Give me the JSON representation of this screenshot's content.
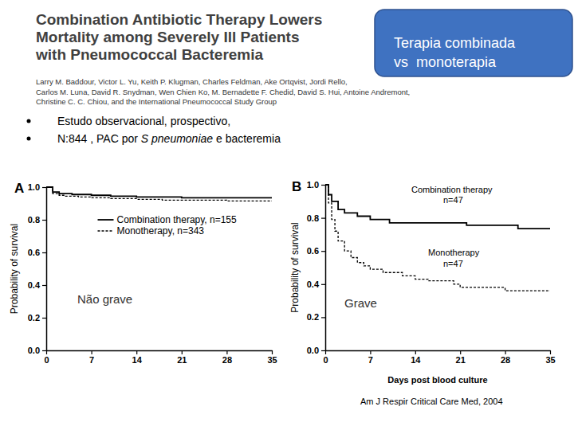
{
  "slide": {
    "title_lines": [
      "Combination Antibiotic Therapy Lowers",
      "Mortality among Severely Ill Patients",
      "with Pneumococcal Bacteremia"
    ],
    "author_lines": [
      "Larry M. Baddour, Victor L. Yu, Keith P. Klugman, Charles Feldman, Ake Ortqvist, Jordi Rello,",
      "Carlos M. Luna, David R. Snydman, Wen Chien Ko, M. Bernadette F. Chedid, David S. Hui, Antoine Andremont,",
      "Christine C. C. Chiou, and the International Pneumococcal Study Group"
    ],
    "box_lines": [
      "Terapia combinada",
      "vs  monoterapia"
    ],
    "bullets": [
      [
        {
          "text": "Estudo observacional, prospectivo,",
          "italic": false
        }
      ],
      [
        {
          "text": "N:844 , PAC por ",
          "italic": false
        },
        {
          "text": "S pneumoniae",
          "italic": true
        },
        {
          "text": " e bacteremia",
          "italic": false
        }
      ]
    ],
    "source": "Am J Respir Critical Care Med, 2004"
  },
  "chart_data": [
    {
      "type": "line",
      "panel": "A",
      "ylabel": "Probability of survival",
      "xlim": [
        0,
        35
      ],
      "xticks": [
        0,
        7,
        14,
        21,
        28,
        35
      ],
      "ylim": [
        0,
        1
      ],
      "yticks": [
        {
          "value": 0,
          "label": "0.0"
        },
        0.2,
        0.4,
        0.6,
        0.8,
        {
          "value": 1,
          "label": "1.0"
        }
      ],
      "legend": "upper center",
      "annotations": [
        "Não grave"
      ],
      "series": [
        {
          "name": "Combination therapy, n=155",
          "color": "#000000",
          "line_style": "solid",
          "x": [
            0,
            1,
            2,
            4,
            7,
            10,
            14,
            21,
            28,
            35
          ],
          "values": [
            1.0,
            0.97,
            0.96,
            0.955,
            0.95,
            0.945,
            0.94,
            0.935,
            0.935,
            0.935
          ]
        },
        {
          "name": "Monotherapy, n=343",
          "color": "#000000",
          "line_style": "dashed",
          "x": [
            0,
            1,
            2,
            3,
            5,
            7,
            10,
            14,
            18,
            21,
            28,
            35
          ],
          "values": [
            1.0,
            0.96,
            0.95,
            0.945,
            0.94,
            0.935,
            0.93,
            0.925,
            0.92,
            0.92,
            0.915,
            0.915
          ]
        }
      ]
    },
    {
      "type": "line",
      "panel": "B",
      "xlabel": "Days post blood culture",
      "ylabel": "Probability of survival",
      "xlim": [
        0,
        35
      ],
      "xticks": [
        0,
        7,
        14,
        21,
        28,
        35
      ],
      "ylim": [
        0,
        1
      ],
      "yticks": [
        {
          "value": 0,
          "label": "0.0"
        },
        0.2,
        0.4,
        0.6,
        0.8,
        {
          "value": 1,
          "label": "1.0"
        }
      ],
      "annotations": [
        "Grave",
        "n=47",
        "n=47"
      ],
      "series": [
        {
          "name": "Combination therapy",
          "color": "#000000",
          "line_style": "solid",
          "x": [
            0,
            0.5,
            1,
            2,
            3,
            5,
            7,
            10,
            14,
            21,
            22,
            28,
            30,
            35
          ],
          "values": [
            1.0,
            0.94,
            0.9,
            0.85,
            0.83,
            0.81,
            0.79,
            0.77,
            0.77,
            0.77,
            0.755,
            0.755,
            0.735,
            0.735
          ]
        },
        {
          "name": "Monotherapy",
          "color": "#000000",
          "line_style": "dashed",
          "x": [
            0,
            0.5,
            1,
            1.5,
            2,
            3,
            4,
            5,
            6,
            7,
            9,
            12,
            14,
            16,
            20,
            21,
            28,
            35
          ],
          "values": [
            1.0,
            0.89,
            0.79,
            0.72,
            0.66,
            0.6,
            0.56,
            0.53,
            0.51,
            0.49,
            0.47,
            0.45,
            0.43,
            0.42,
            0.4,
            0.38,
            0.36,
            0.36
          ]
        }
      ]
    }
  ]
}
